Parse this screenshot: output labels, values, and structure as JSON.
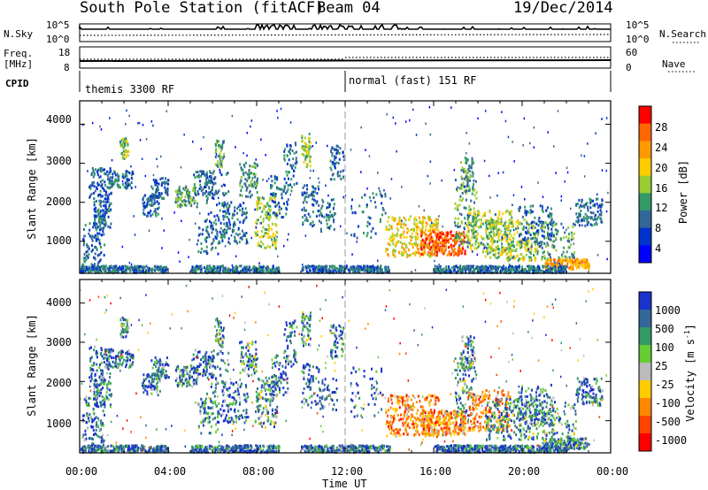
{
  "header": {
    "station": "South Pole Station (fitACF)",
    "beam": "Beam 04",
    "date": "19/Dec/2014"
  },
  "strip": {
    "nsky_label": "N.Sky",
    "nsky_ticks": [
      "10^5",
      "10^0"
    ],
    "nsearch_label": "N.Search",
    "nsearch_ticks": [
      "10^5",
      "10^0"
    ],
    "freq_label_1": "Freq.",
    "freq_label_2": "[MHz]",
    "freq_ticks": [
      "18",
      "8"
    ],
    "nave_label": "Nave",
    "nave_ticks": [
      "60",
      "0"
    ],
    "cpid_label": "CPID",
    "cpid_modes": [
      {
        "name": "themis 3300 RF",
        "start_hour": 0
      },
      {
        "name": "normal (fast) 151 RF",
        "start_hour": 12
      }
    ]
  },
  "chart_data": [
    {
      "type": "heatmap",
      "name": "power",
      "ylabel": "Slant Range [km]",
      "xlabel": "",
      "x_range_hours": [
        0,
        24
      ],
      "ylim": [
        180,
        4600
      ],
      "yticks": [
        "1000",
        "2000",
        "3000",
        "4000"
      ],
      "colorbar": {
        "label": "Power [dB]",
        "ticks": [
          "28",
          "24",
          "20",
          "16",
          "12",
          "8",
          "4"
        ],
        "colors": [
          "#ff0000",
          "#ff6600",
          "#ff9900",
          "#ffcc00",
          "#99cc33",
          "#339966",
          "#336699",
          "#0033cc",
          "#0000ff"
        ]
      }
    },
    {
      "type": "heatmap",
      "name": "velocity",
      "ylabel": "Slant Range [km]",
      "xlabel": "Time UT",
      "x_range_hours": [
        0,
        24
      ],
      "ylim": [
        180,
        4600
      ],
      "xticks": [
        "00:00",
        "04:00",
        "08:00",
        "12:00",
        "16:00",
        "20:00",
        "00:00"
      ],
      "yticks": [
        "1000",
        "2000",
        "3000",
        "4000"
      ],
      "colorbar": {
        "label": "Velocity [m s",
        "label_sup": "-1",
        "label_end": "]",
        "ticks": [
          "1000",
          "500",
          "100",
          "25",
          "-25",
          "-100",
          "-500",
          "-1000"
        ],
        "colors": [
          "#1a33cc",
          "#336699",
          "#339966",
          "#66cc33",
          "#bbbbbb",
          "#ffcc00",
          "#ff8800",
          "#ff4400",
          "#ff0000"
        ]
      }
    }
  ],
  "colors": {
    "axis": "#000000",
    "sky_line": "#000000",
    "search_dots": "#000000"
  }
}
